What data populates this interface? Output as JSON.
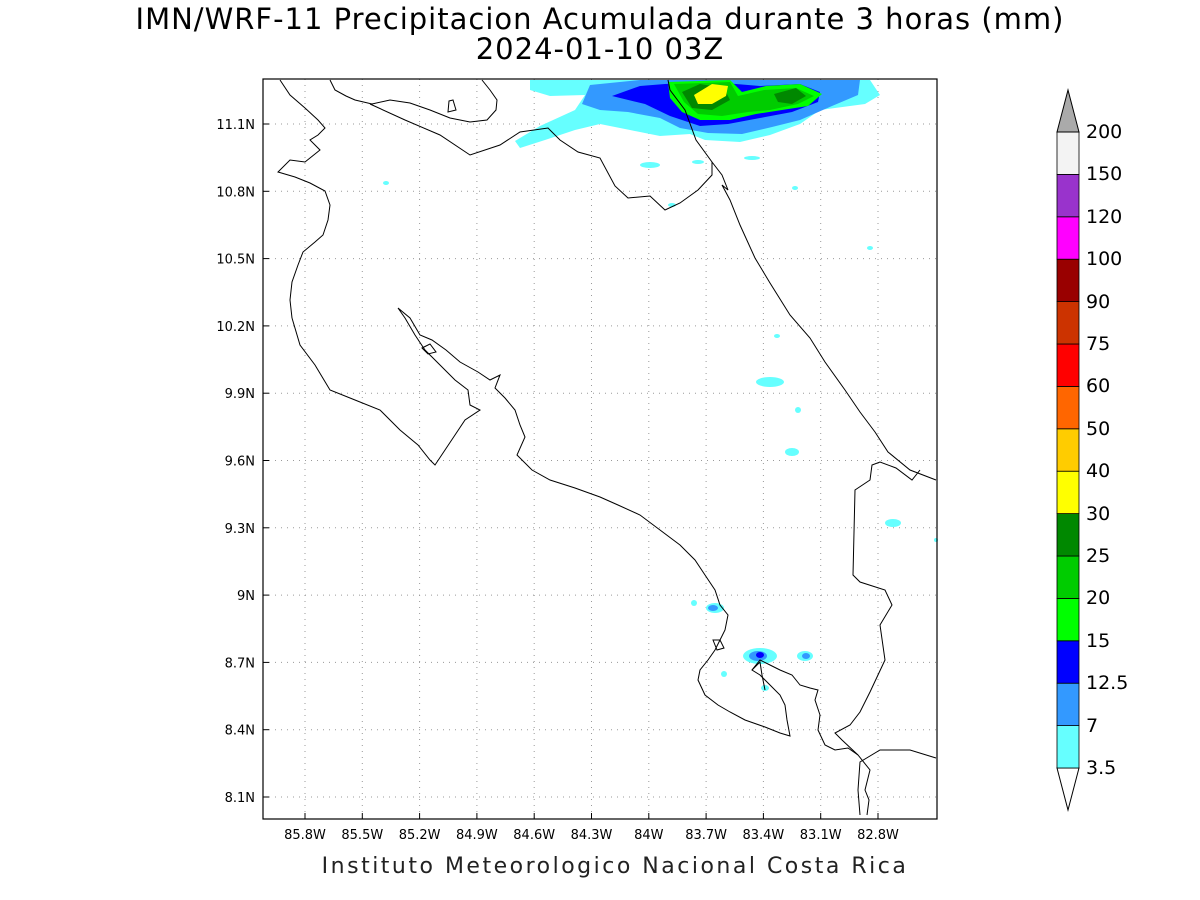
{
  "header": {
    "title": "IMN/WRF-11 Precipitacion Acumulada durante 3 horas (mm)",
    "subtitle": "2024-01-10 03Z"
  },
  "footer": {
    "credit": "Instituto Meteorologico Nacional Costa Rica"
  },
  "map": {
    "lon_ticks": [
      "85.8W",
      "85.5W",
      "85.2W",
      "84.9W",
      "84.6W",
      "84.3W",
      "84W",
      "83.7W",
      "83.4W",
      "83.1W",
      "82.8W"
    ],
    "lat_ticks": [
      "11.1N",
      "10.8N",
      "10.5N",
      "10.2N",
      "9.9N",
      "9.6N",
      "9.3N",
      "9N",
      "8.7N",
      "8.4N",
      "8.1N"
    ],
    "grid": "dotted"
  },
  "legend": {
    "levels": [
      "3.5",
      "7",
      "12.5",
      "15",
      "20",
      "25",
      "30",
      "40",
      "50",
      "60",
      "75",
      "90",
      "100",
      "120",
      "150",
      "200"
    ],
    "colors": [
      "#66ffff",
      "#3399ff",
      "#0000ff",
      "#00ff00",
      "#00cc00",
      "#008800",
      "#ffff00",
      "#ffcc00",
      "#ff6600",
      "#ff0000",
      "#cc3300",
      "#990000",
      "#ff00ff",
      "#9933cc",
      "#f3f3f3",
      "#aaaaaa"
    ]
  }
}
